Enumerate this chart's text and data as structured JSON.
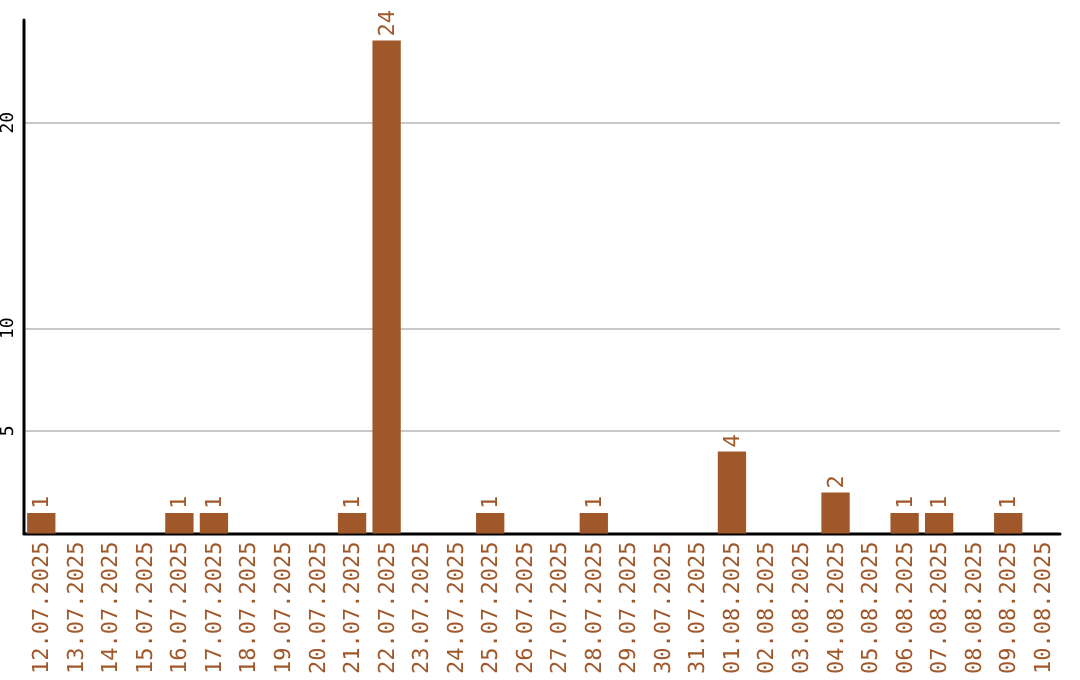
{
  "chart_data": {
    "type": "bar",
    "categories": [
      "12.07.2025",
      "13.07.2025",
      "14.07.2025",
      "15.07.2025",
      "16.07.2025",
      "17.07.2025",
      "18.07.2025",
      "19.07.2025",
      "20.07.2025",
      "21.07.2025",
      "22.07.2025",
      "23.07.2025",
      "24.07.2025",
      "25.07.2025",
      "26.07.2025",
      "27.07.2025",
      "28.07.2025",
      "29.07.2025",
      "30.07.2025",
      "31.07.2025",
      "01.08.2025",
      "02.08.2025",
      "03.08.2025",
      "04.08.2025",
      "05.08.2025",
      "06.08.2025",
      "07.08.2025",
      "08.08.2025",
      "09.08.2025",
      "10.08.2025"
    ],
    "values": [
      1,
      0,
      0,
      0,
      1,
      1,
      0,
      0,
      0,
      1,
      24,
      0,
      0,
      1,
      0,
      0,
      1,
      0,
      0,
      0,
      4,
      0,
      0,
      2,
      0,
      1,
      1,
      0,
      1,
      0
    ],
    "value_labels": [
      "1",
      null,
      null,
      null,
      "1",
      "1",
      null,
      null,
      null,
      "1",
      "24",
      null,
      null,
      "1",
      null,
      null,
      "1",
      null,
      null,
      null,
      "4",
      null,
      null,
      "2",
      null,
      "1",
      "1",
      null,
      "1",
      null
    ],
    "color": "#a0582a",
    "ylim": [
      0,
      25
    ],
    "yticks": [
      5,
      10,
      20
    ],
    "grid": "y"
  }
}
